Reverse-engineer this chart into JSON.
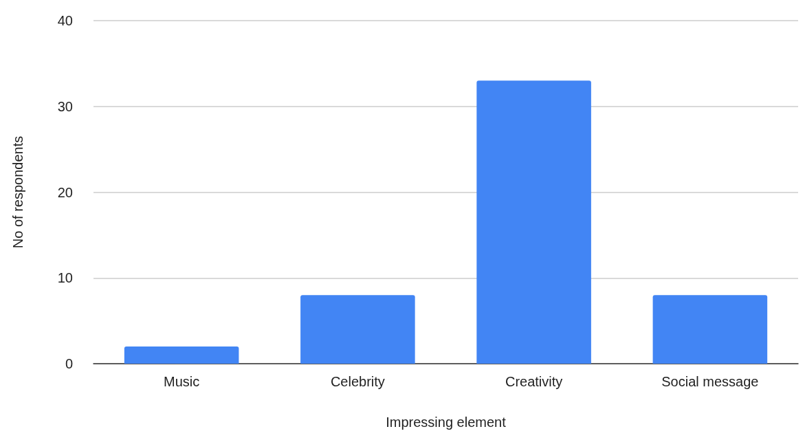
{
  "chart_data": {
    "type": "bar",
    "xlabel": "Impressing element",
    "ylabel": "No of respondents",
    "categories": [
      "Music",
      "Celebrity",
      "Creativity",
      "Social message"
    ],
    "values": [
      2,
      8,
      33,
      8
    ],
    "color": "#4285f4",
    "ylim": [
      0,
      40
    ],
    "yticks": [
      0,
      10,
      20,
      30,
      40
    ],
    "grid": "y"
  }
}
